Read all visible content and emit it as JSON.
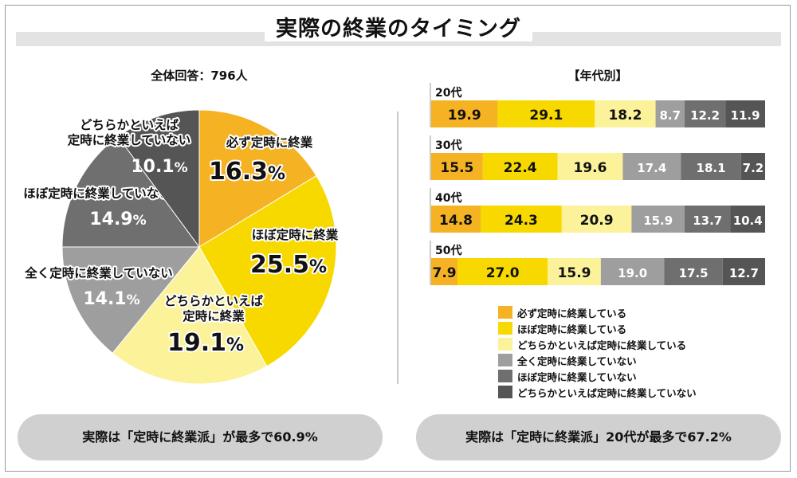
{
  "title": "実際の終業のタイミング",
  "pie_subtitle": "全体回答：796人",
  "bar_subtitle": "【年代別】",
  "categories": [
    "必ず定時に終業している",
    "ほぼ定時に終業している",
    "どちらかといえば定時に終業している",
    "全く定時に終業していない",
    "ほぼ定時に終業していない",
    "どちらかといえば定時に終業していない"
  ],
  "colors": [
    "#f5b324",
    "#f7d900",
    "#fbf29a",
    "#9e9e9e",
    "#6f6f6f",
    "#555555"
  ],
  "chart_data": [
    {
      "type": "pie",
      "subtitle": "全体回答：796人",
      "slices": [
        {
          "label_lines": [
            "必ず定時に終業"
          ],
          "value": 16.3,
          "value_text": "16.3",
          "color": "#f5b324"
        },
        {
          "label_lines": [
            "ほぼ定時に終業"
          ],
          "value": 25.5,
          "value_text": "25.5",
          "color": "#f7d900"
        },
        {
          "label_lines": [
            "どちらかといえば",
            "定時に終業"
          ],
          "value": 19.1,
          "value_text": "19.1",
          "color": "#fbf29a"
        },
        {
          "label_lines": [
            "全く定時に終業していない"
          ],
          "value": 14.1,
          "value_text": "14.1",
          "color": "#9e9e9e"
        },
        {
          "label_lines": [
            "ほぼ定時に終業していない"
          ],
          "value": 14.9,
          "value_text": "14.9",
          "color": "#6f6f6f"
        },
        {
          "label_lines": [
            "どちらかといえば",
            "定時に終業していない"
          ],
          "value": 10.1,
          "value_text": "10.1",
          "color": "#555555"
        }
      ],
      "unit": "%"
    },
    {
      "type": "bar",
      "stacked": "100%",
      "orientation": "horizontal",
      "subtitle": "【年代別】",
      "categories": [
        "20代",
        "30代",
        "40代",
        "50代"
      ],
      "series": [
        {
          "name": "必ず定時に終業している",
          "values": [
            19.9,
            15.5,
            14.8,
            7.9
          ],
          "labels": [
            "19.9",
            "15.5",
            "14.8",
            "7.9"
          ]
        },
        {
          "name": "ほぼ定時に終業している",
          "values": [
            29.1,
            22.4,
            24.3,
            27.0
          ],
          "labels": [
            "29.1",
            "22.4",
            "24.3",
            "27.0"
          ]
        },
        {
          "name": "どちらかといえば定時に終業している",
          "values": [
            18.2,
            19.6,
            20.9,
            15.9
          ],
          "labels": [
            "18.2",
            "19.6",
            "20.9",
            "15.9"
          ]
        },
        {
          "name": "全く定時に終業していない",
          "values": [
            8.7,
            17.4,
            15.9,
            19.0
          ],
          "labels": [
            "8.7",
            "17.4",
            "15.9",
            "19.0"
          ]
        },
        {
          "name": "ほぼ定時に終業していない",
          "values": [
            12.2,
            18.1,
            13.7,
            17.5
          ],
          "labels": [
            "12.2",
            "18.1",
            "13.7",
            "17.5"
          ]
        },
        {
          "name": "どちらかといえば定時に終業していない",
          "values": [
            11.9,
            7.2,
            10.4,
            12.7
          ],
          "labels": [
            "11.9",
            "7.2",
            "10.4",
            "12.7"
          ]
        }
      ],
      "legend_position": "bottom"
    }
  ],
  "summary_left": "実際は「定時に終業派」が最多で60.9%",
  "summary_right": "実際は「定時に終業派」20代が最多で67.2%"
}
